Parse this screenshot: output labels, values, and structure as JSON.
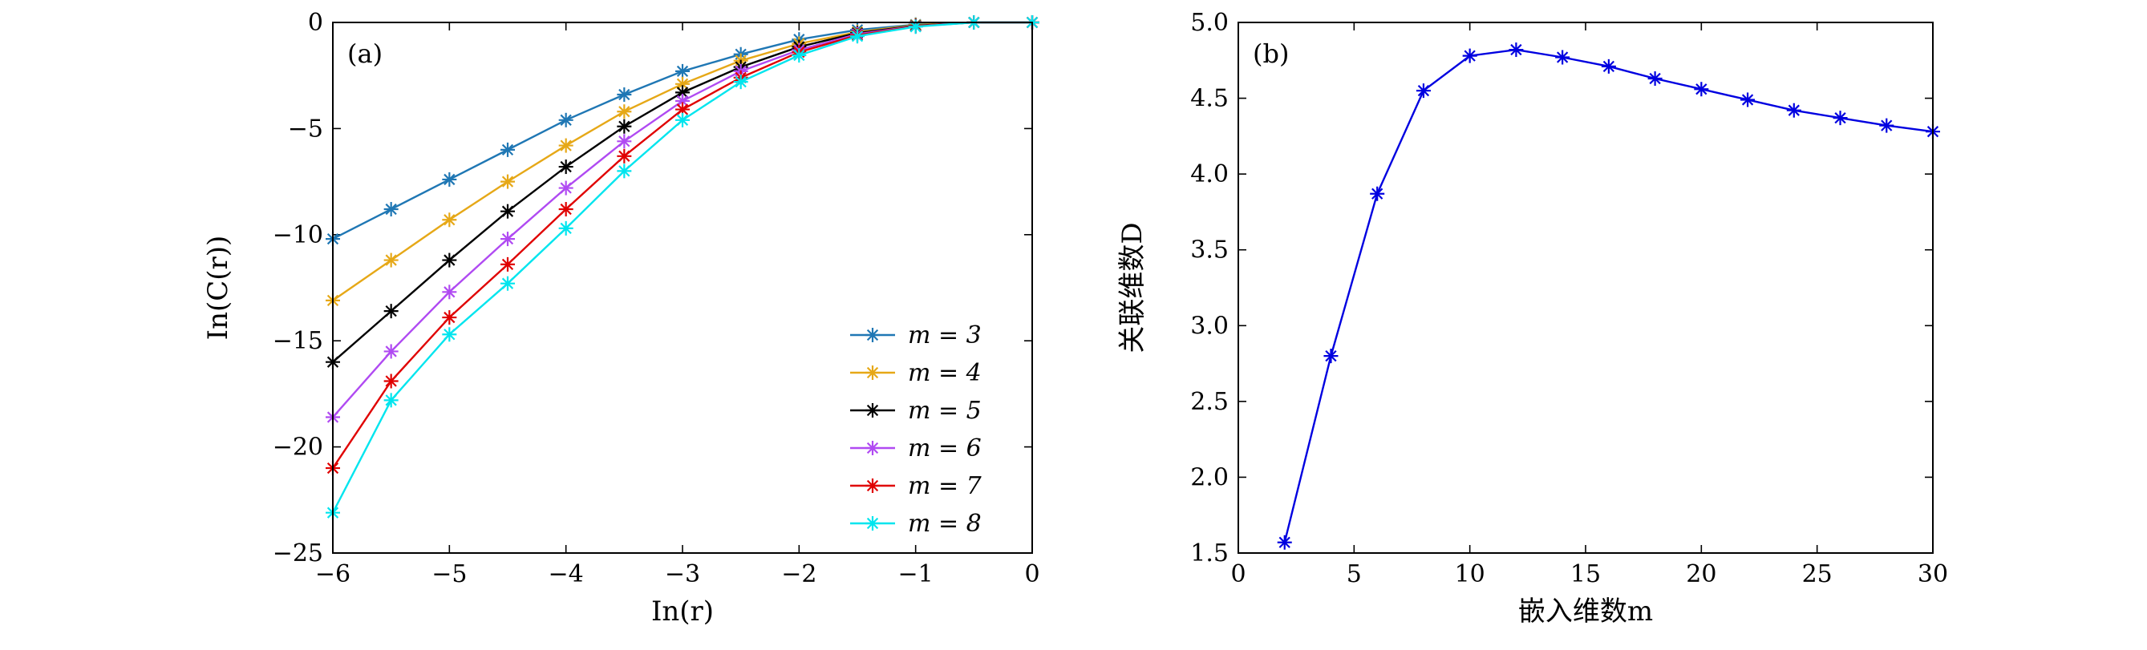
{
  "chart_data": [
    {
      "type": "line",
      "panel_label": "(a)",
      "xlabel": "In(r)",
      "ylabel": "In(C(r))",
      "xlim": [
        -6,
        0
      ],
      "ylim": [
        -25,
        0
      ],
      "xticks": [
        -6,
        -5,
        -4,
        -3,
        -2,
        -1,
        0
      ],
      "yticks": [
        -25,
        -20,
        -15,
        -10,
        -5,
        0
      ],
      "xtick_labels": [
        "−6",
        "−5",
        "−4",
        "−3",
        "−2",
        "−1",
        "0"
      ],
      "ytick_labels": [
        "−25",
        "−20",
        "−15",
        "−10",
        "−5",
        "0"
      ],
      "marker": "asterisk",
      "legend_position": "lower-right",
      "x": [
        -6,
        -5.5,
        -5,
        -4.5,
        -4,
        -3.5,
        -3,
        -2.5,
        -2,
        -1.5,
        -1,
        -0.5,
        0
      ],
      "series": [
        {
          "name": "m = 3",
          "color": "#1f77b4",
          "values": [
            -10.2,
            -8.8,
            -7.4,
            -6.0,
            -4.6,
            -3.4,
            -2.3,
            -1.5,
            -0.8,
            -0.35,
            -0.1,
            0,
            0
          ]
        },
        {
          "name": "m = 4",
          "color": "#e6a817",
          "values": [
            -13.1,
            -11.2,
            -9.3,
            -7.5,
            -5.8,
            -4.2,
            -2.9,
            -1.8,
            -1.0,
            -0.45,
            -0.12,
            0,
            0
          ]
        },
        {
          "name": "m = 5",
          "color": "#000000",
          "values": [
            -16.0,
            -13.6,
            -11.2,
            -8.9,
            -6.8,
            -4.9,
            -3.3,
            -2.1,
            -1.15,
            -0.5,
            -0.15,
            0,
            0
          ]
        },
        {
          "name": "m = 6",
          "color": "#b04af2",
          "values": [
            -18.6,
            -15.5,
            -12.7,
            -10.2,
            -7.8,
            -5.6,
            -3.7,
            -2.3,
            -1.3,
            -0.55,
            -0.17,
            0,
            0
          ]
        },
        {
          "name": "m = 7",
          "color": "#e00000",
          "values": [
            -21.0,
            -16.9,
            -13.9,
            -11.4,
            -8.8,
            -6.3,
            -4.1,
            -2.6,
            -1.4,
            -0.6,
            -0.18,
            0,
            0
          ]
        },
        {
          "name": "m = 8",
          "color": "#00e5ee",
          "values": [
            -23.1,
            -17.8,
            -14.7,
            -12.3,
            -9.7,
            -7.0,
            -4.6,
            -2.8,
            -1.55,
            -0.65,
            -0.2,
            0,
            0
          ]
        }
      ]
    },
    {
      "type": "line",
      "panel_label": "(b)",
      "xlabel": "嵌入维数m",
      "ylabel": "关联维数D",
      "xlim": [
        0,
        30
      ],
      "ylim": [
        1.5,
        5.0
      ],
      "xticks": [
        0,
        5,
        10,
        15,
        20,
        25,
        30
      ],
      "yticks": [
        1.5,
        2.0,
        2.5,
        3.0,
        3.5,
        4.0,
        4.5,
        5.0
      ],
      "xtick_labels": [
        "0",
        "5",
        "10",
        "15",
        "20",
        "25",
        "30"
      ],
      "ytick_labels": [
        "1.5",
        "2.0",
        "2.5",
        "3.0",
        "3.5",
        "4.0",
        "4.5",
        "5.0"
      ],
      "marker": "asterisk",
      "series": [
        {
          "name": "D",
          "color": "#0000e0",
          "x": [
            2,
            4,
            6,
            8,
            10,
            12,
            14,
            16,
            18,
            20,
            22,
            24,
            26,
            28,
            30
          ],
          "values": [
            1.57,
            2.8,
            3.87,
            4.55,
            4.78,
            4.82,
            4.77,
            4.71,
            4.63,
            4.56,
            4.49,
            4.42,
            4.37,
            4.32,
            4.28
          ]
        }
      ]
    }
  ]
}
